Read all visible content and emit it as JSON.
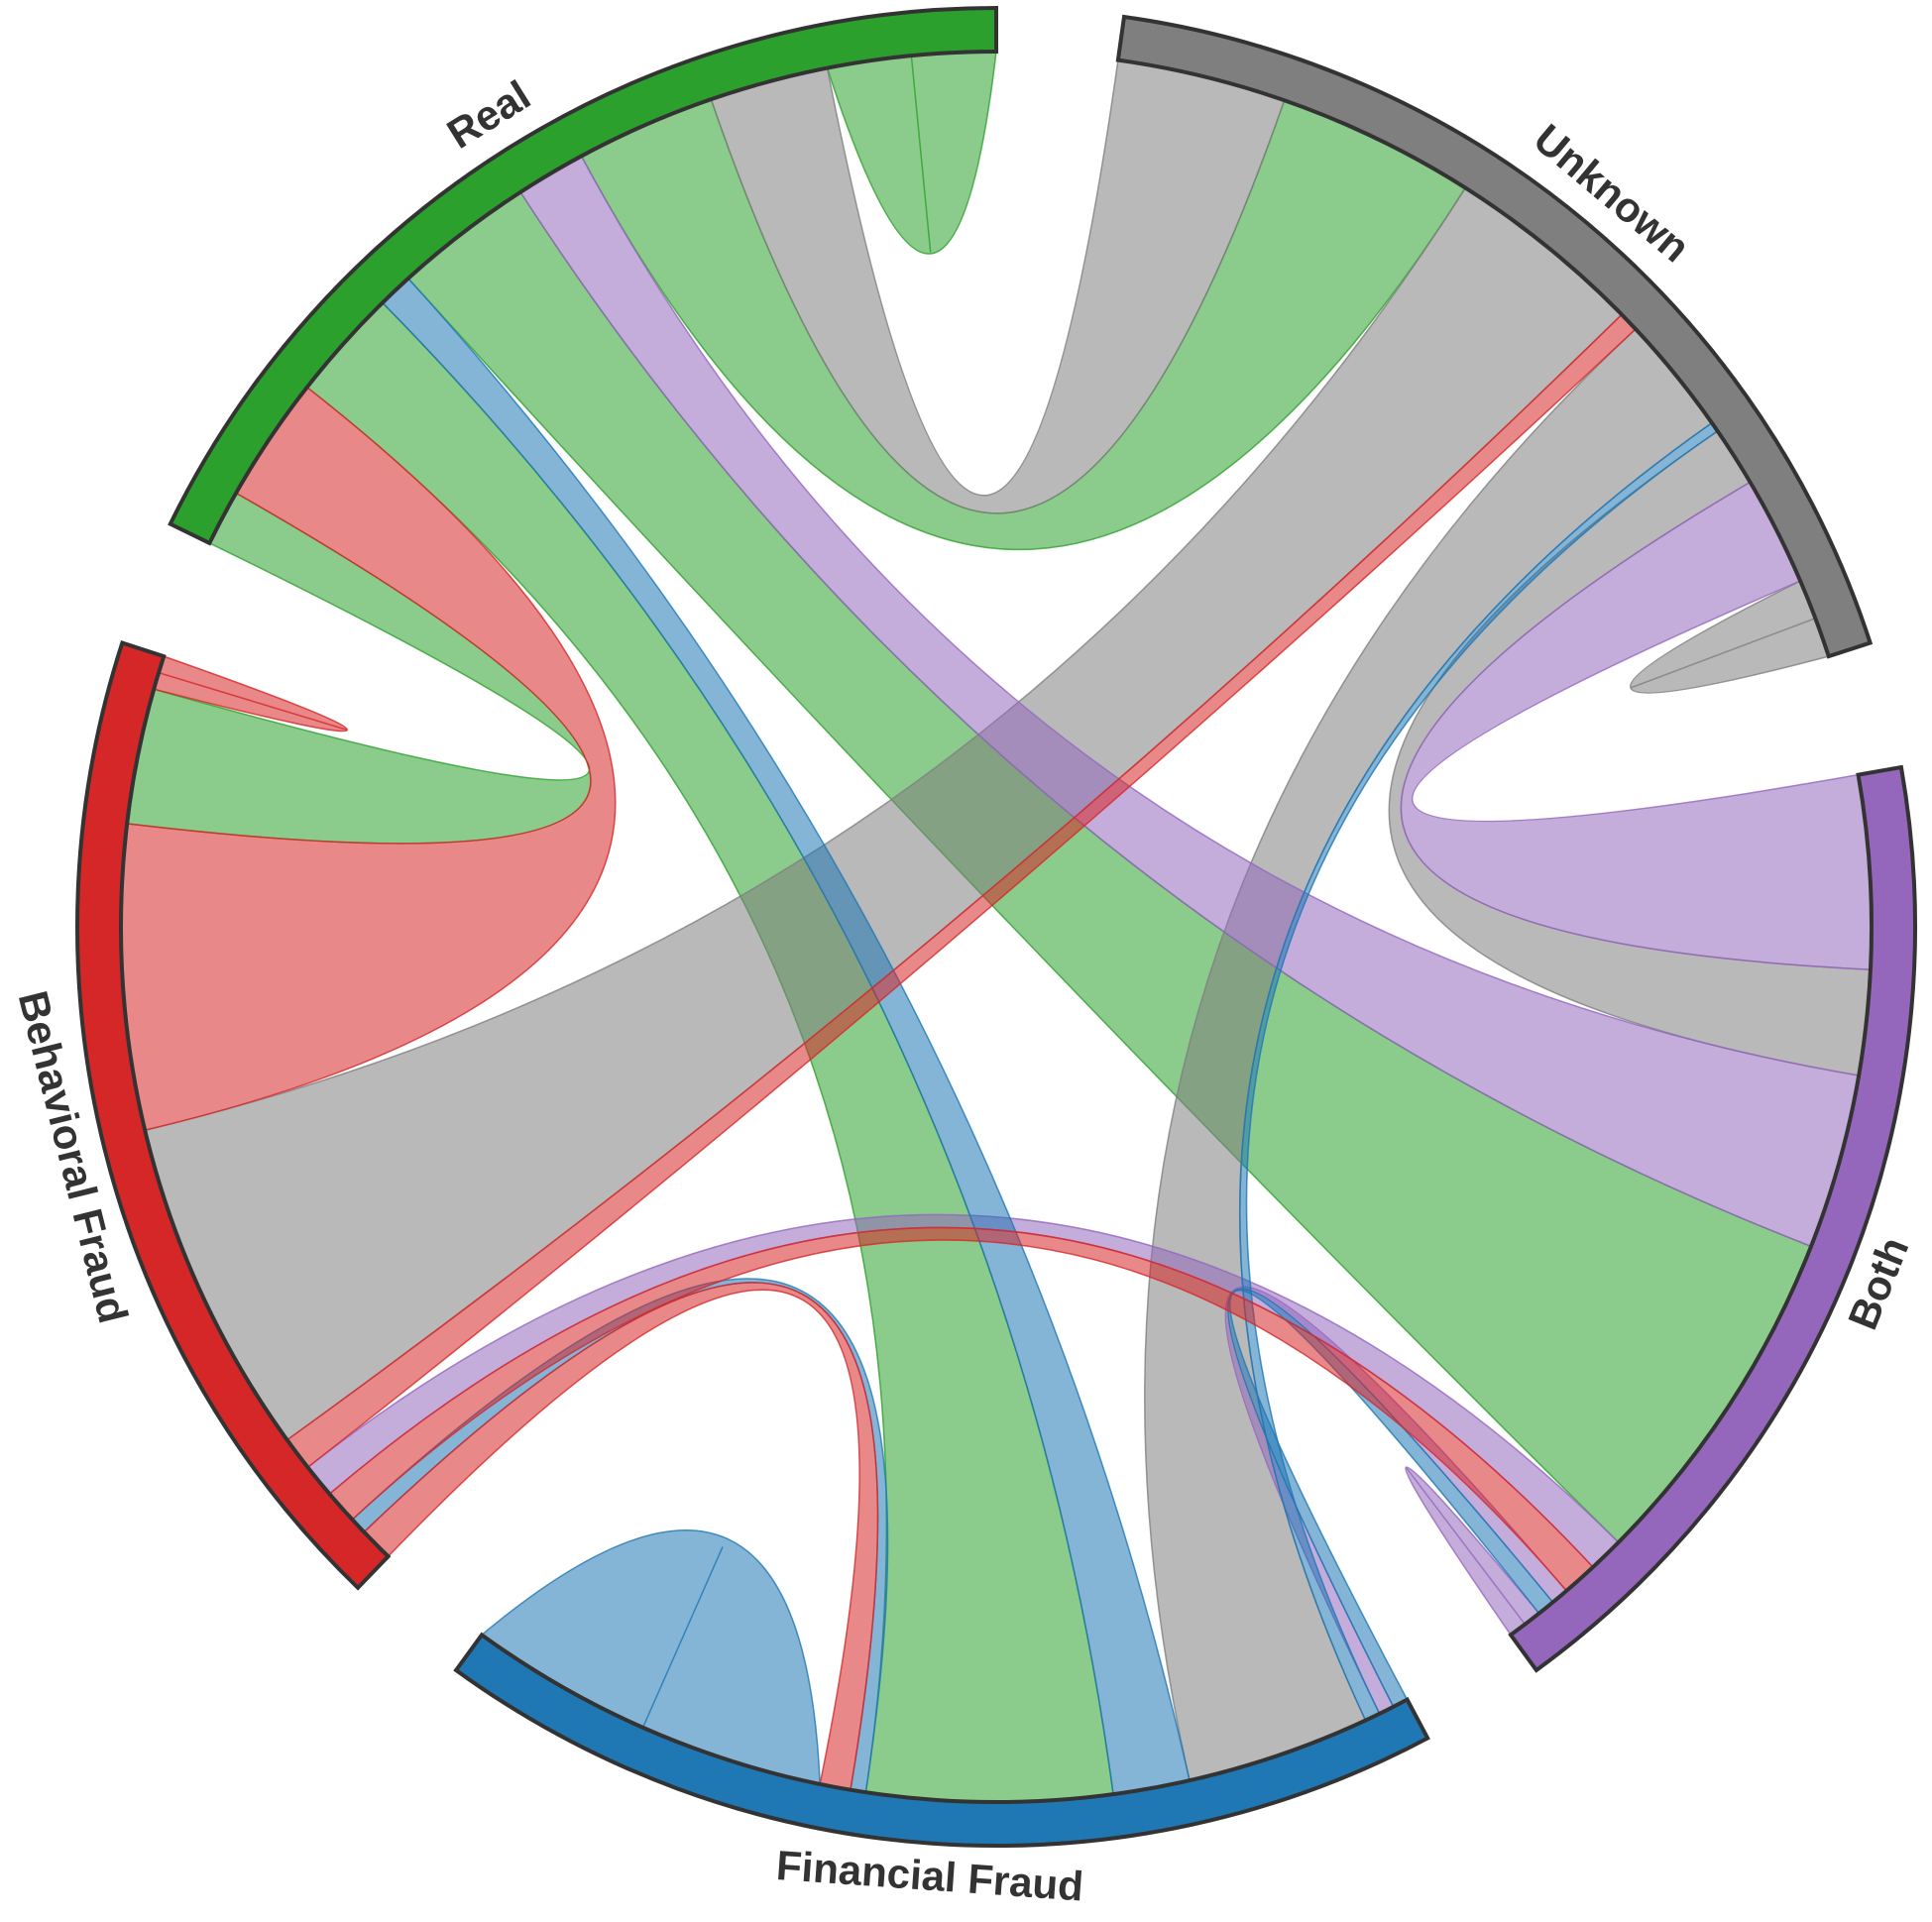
{
  "chart_data": {
    "type": "chord",
    "nodes": [
      {
        "name": "Real",
        "color": "#2ca02c"
      },
      {
        "name": "Unknown",
        "color": "#7f7f7f"
      },
      {
        "name": "Both",
        "color": "#9467bd"
      },
      {
        "name": "Financial Fraud",
        "color": "#1f77b4"
      },
      {
        "name": "Behavioral Fraud",
        "color": "#d62728"
      }
    ],
    "links": [
      {
        "source": "Real",
        "target": "Real",
        "value": 12
      },
      {
        "source": "Real",
        "target": "Unknown",
        "value": 20
      },
      {
        "source": "Real",
        "target": "Both",
        "value": 20
      },
      {
        "source": "Real",
        "target": "Financial Fraud",
        "value": 16
      },
      {
        "source": "Real",
        "target": "Behavioral Fraud",
        "value": 8
      },
      {
        "source": "Unknown",
        "target": "Real",
        "value": 17
      },
      {
        "source": "Unknown",
        "target": "Unknown",
        "value": 4
      },
      {
        "source": "Unknown",
        "target": "Both",
        "value": 6
      },
      {
        "source": "Unknown",
        "target": "Financial Fraud",
        "value": 12
      },
      {
        "source": "Unknown",
        "target": "Behavioral Fraud",
        "value": 20
      },
      {
        "source": "Both",
        "target": "Real",
        "value": 10
      },
      {
        "source": "Both",
        "target": "Unknown",
        "value": 11
      },
      {
        "source": "Both",
        "target": "Both",
        "value": 1
      },
      {
        "source": "Both",
        "target": "Financial Fraud",
        "value": 1
      },
      {
        "source": "Both",
        "target": "Behavioral Fraud",
        "value": 2
      },
      {
        "source": "Financial Fraud",
        "target": "Real",
        "value": 5
      },
      {
        "source": "Financial Fraud",
        "target": "Unknown",
        "value": 1
      },
      {
        "source": "Financial Fraud",
        "target": "Both",
        "value": 1
      },
      {
        "source": "Financial Fraud",
        "target": "Financial Fraud",
        "value": 12
      },
      {
        "source": "Financial Fraud",
        "target": "Behavioral Fraud",
        "value": 1
      },
      {
        "source": "Behavioral Fraud",
        "target": "Real",
        "value": 18
      },
      {
        "source": "Behavioral Fraud",
        "target": "Unknown",
        "value": 2
      },
      {
        "source": "Behavioral Fraud",
        "target": "Both",
        "value": 2
      },
      {
        "source": "Behavioral Fraud",
        "target": "Financial Fraud",
        "value": 2
      },
      {
        "source": "Behavioral Fraud",
        "target": "Behavioral Fraud",
        "value": 1
      }
    ]
  }
}
